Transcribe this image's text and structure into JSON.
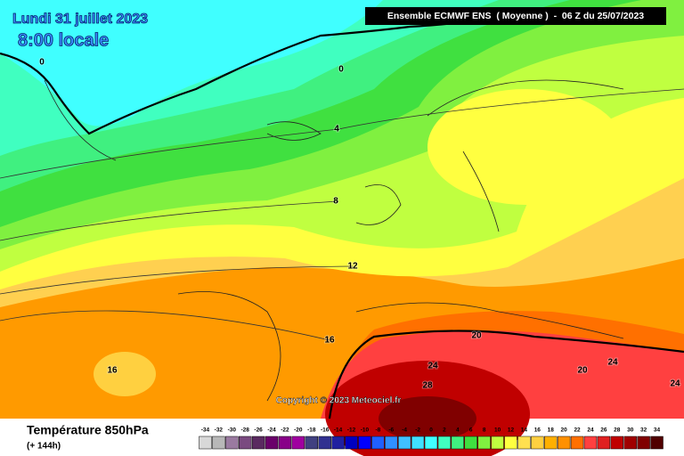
{
  "header": {
    "date": "Lundi 31 juillet 2023",
    "time": "8:00 locale",
    "model": "Ensemble ECMWF ENS  ( Moyenne )  -  06 Z du 25/07/2023"
  },
  "contour_labels": [
    0,
    0,
    4,
    8,
    12,
    16,
    16,
    20,
    24,
    28,
    20,
    24,
    24
  ],
  "copyright": "Copyright © 2023 Meteociel.fr",
  "legend": {
    "title": "Température 850hPa",
    "lead_time": "(+ 144h)",
    "values": [
      -34,
      -32,
      -30,
      -28,
      -26,
      -24,
      -22,
      -20,
      -18,
      -16,
      -14,
      -12,
      -10,
      -8,
      -6,
      -4,
      -2,
      0,
      2,
      4,
      6,
      8,
      10,
      12,
      14,
      16,
      18,
      20,
      22,
      24,
      26,
      28,
      30,
      32,
      34
    ],
    "colors": [
      "#d8d8d8",
      "#b8b8b8",
      "#9a7aa0",
      "#7a4a80",
      "#5a2a60",
      "#6a006a",
      "#880088",
      "#a000a0",
      "#404080",
      "#303090",
      "#2020a0",
      "#0000c0",
      "#0000ff",
      "#2060ff",
      "#3090ff",
      "#40c0ff",
      "#40e0ff",
      "#40ffff",
      "#40ffc0",
      "#40f080",
      "#40e040",
      "#80f040",
      "#c0ff40",
      "#ffff40",
      "#ffe050",
      "#ffd040",
      "#ffb000",
      "#ff9000",
      "#ff7000",
      "#ff4040",
      "#e02020",
      "#c00000",
      "#a00000",
      "#800000",
      "#500000"
    ]
  }
}
